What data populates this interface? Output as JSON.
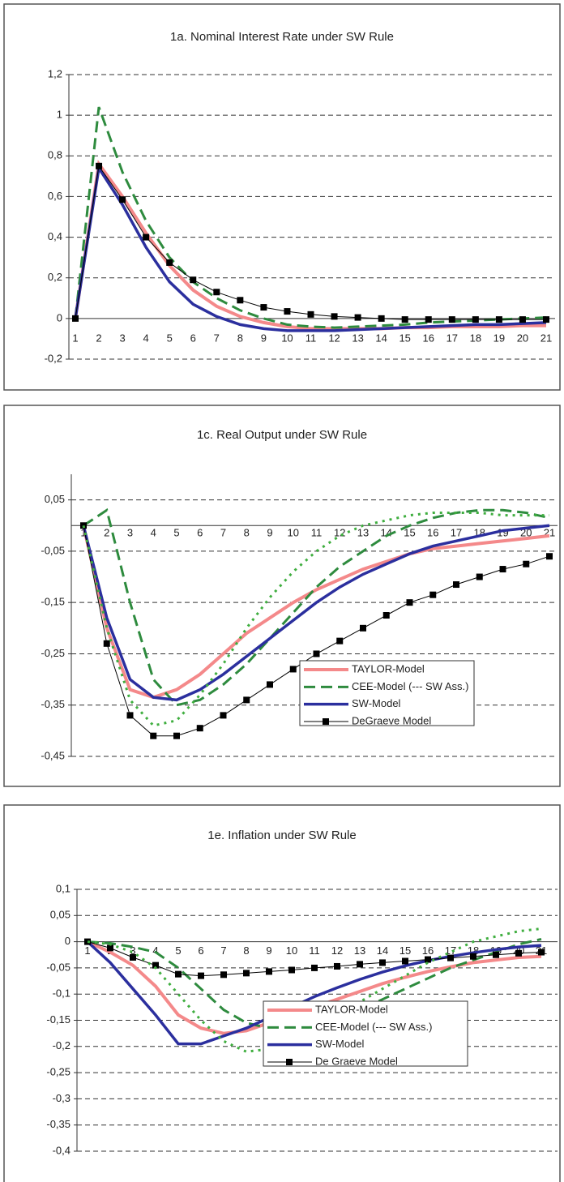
{
  "chart_data": [
    {
      "type": "line",
      "title": "1a. Nominal Interest Rate under SW Rule",
      "categories": [
        "1",
        "2",
        "3",
        "4",
        "5",
        "6",
        "7",
        "8",
        "9",
        "10",
        "11",
        "12",
        "13",
        "14",
        "15",
        "16",
        "17",
        "18",
        "19",
        "20",
        "21"
      ],
      "ylim": [
        -0.2,
        1.2
      ],
      "yticks": [
        {
          "value": 1.2,
          "label": "1,2"
        },
        1,
        {
          "value": 0.8,
          "label": "0,8"
        },
        {
          "value": 0.6,
          "label": "0,6"
        },
        {
          "value": 0.4,
          "label": "0,4"
        },
        {
          "value": 0.2,
          "label": "0,2"
        },
        0,
        {
          "value": -0.2,
          "label": "-0,2"
        }
      ],
      "grid": true,
      "series": [
        {
          "color": "#f4898a",
          "style": "solid",
          "width": 4,
          "values": [
            0,
            0.76,
            0.6,
            0.42,
            0.26,
            0.14,
            0.06,
            0.01,
            -0.02,
            -0.04,
            -0.05,
            -0.05,
            -0.05,
            -0.05,
            -0.045,
            -0.045,
            -0.04,
            -0.04,
            -0.04,
            -0.035,
            -0.035
          ]
        },
        {
          "color": "#2e8b3e",
          "style": "dashed",
          "width": 3,
          "values": [
            0,
            1.04,
            0.72,
            0.48,
            0.3,
            0.18,
            0.1,
            0.04,
            0,
            -0.03,
            -0.04,
            -0.045,
            -0.04,
            -0.035,
            -0.03,
            -0.02,
            -0.015,
            -0.01,
            -0.005,
            0,
            0.005
          ]
        },
        {
          "color": "#2b2f9e",
          "style": "solid",
          "width": 3.5,
          "values": [
            0,
            0.74,
            0.56,
            0.35,
            0.18,
            0.07,
            0.01,
            -0.03,
            -0.05,
            -0.06,
            -0.06,
            -0.06,
            -0.055,
            -0.05,
            -0.045,
            -0.04,
            -0.035,
            -0.03,
            -0.03,
            -0.025,
            -0.02
          ]
        },
        {
          "color": "#000000",
          "style": "solid",
          "width": 1,
          "marker": "square",
          "values": [
            0,
            0.75,
            0.585,
            0.4,
            0.275,
            0.19,
            0.13,
            0.09,
            0.055,
            0.035,
            0.02,
            0.01,
            0.005,
            0,
            -0.005,
            -0.005,
            -0.005,
            -0.005,
            -0.005,
            -0.005,
            -0.005
          ]
        }
      ]
    },
    {
      "type": "line",
      "title": "1c. Real Output under SW Rule",
      "categories": [
        "1",
        "2",
        "3",
        "4",
        "5",
        "6",
        "7",
        "8",
        "9",
        "10",
        "11",
        "12",
        "13",
        "14",
        "15",
        "16",
        "17",
        "18",
        "19",
        "20",
        "21"
      ],
      "ylim": [
        -0.45,
        0.1
      ],
      "yticks": [
        {
          "value": 0.05,
          "label": "0,05"
        },
        {
          "value": -0.05,
          "label": "-0,05"
        },
        {
          "value": -0.15,
          "label": "-0,15"
        },
        {
          "value": -0.25,
          "label": "-0,25"
        },
        {
          "value": -0.35,
          "label": "-0,35"
        },
        {
          "value": -0.45,
          "label": "-0,45"
        }
      ],
      "grid": true,
      "legend": "lower right",
      "series": [
        {
          "name": "TAYLOR-Model",
          "color": "#f4898a",
          "style": "solid",
          "width": 4,
          "values": [
            0,
            -0.2,
            -0.32,
            -0.335,
            -0.32,
            -0.29,
            -0.25,
            -0.21,
            -0.18,
            -0.15,
            -0.125,
            -0.105,
            -0.085,
            -0.07,
            -0.055,
            -0.045,
            -0.04,
            -0.035,
            -0.03,
            -0.025,
            -0.02
          ]
        },
        {
          "name": "CEE-Model (--- SW Ass.)",
          "color": "#2e8b3e",
          "style": "dashed",
          "width": 3,
          "values": [
            0,
            0.03,
            -0.15,
            -0.3,
            -0.35,
            -0.34,
            -0.31,
            -0.27,
            -0.22,
            -0.17,
            -0.12,
            -0.08,
            -0.05,
            -0.02,
            0,
            0.015,
            0.025,
            0.03,
            0.03,
            0.025,
            0.015
          ]
        },
        {
          "name": "SW-Model",
          "color": "#2b2f9e",
          "style": "solid",
          "width": 3.5,
          "values": [
            0,
            -0.18,
            -0.3,
            -0.335,
            -0.34,
            -0.32,
            -0.29,
            -0.255,
            -0.22,
            -0.185,
            -0.15,
            -0.12,
            -0.095,
            -0.075,
            -0.055,
            -0.04,
            -0.03,
            -0.02,
            -0.01,
            -0.005,
            0
          ]
        },
        {
          "name": "DeGraeve Model",
          "color": "#000000",
          "style": "solid",
          "width": 1,
          "marker": "square",
          "values": [
            0,
            -0.23,
            -0.37,
            -0.41,
            -0.41,
            -0.395,
            -0.37,
            -0.34,
            -0.31,
            -0.28,
            -0.25,
            -0.225,
            -0.2,
            -0.175,
            -0.15,
            -0.135,
            -0.115,
            -0.1,
            -0.085,
            -0.075,
            -0.06
          ]
        },
        {
          "color": "#3fae3f",
          "style": "dotted",
          "width": 3,
          "values": [
            0,
            -0.2,
            -0.34,
            -0.39,
            -0.38,
            -0.33,
            -0.27,
            -0.2,
            -0.14,
            -0.09,
            -0.05,
            -0.02,
            0,
            0.01,
            0.02,
            0.025,
            0.025,
            0.025,
            0.02,
            0.02,
            0.02
          ]
        }
      ]
    },
    {
      "type": "line",
      "title": "1e. Inflation under SW Rule",
      "categories": [
        "1",
        "2",
        "3",
        "4",
        "5",
        "6",
        "7",
        "8",
        "9",
        "10",
        "11",
        "12",
        "13",
        "14",
        "15",
        "16",
        "17",
        "18",
        "19",
        "20",
        "21"
      ],
      "ylim": [
        -0.4,
        0.1
      ],
      "yticks": [
        {
          "value": 0.1,
          "label": "0,1"
        },
        {
          "value": 0.05,
          "label": "0,05"
        },
        0,
        {
          "value": -0.05,
          "label": "-0,05"
        },
        {
          "value": -0.1,
          "label": "-0,1"
        },
        {
          "value": -0.15,
          "label": "-0,15"
        },
        {
          "value": -0.2,
          "label": "-0,2"
        },
        {
          "value": -0.25,
          "label": "-0,25"
        },
        {
          "value": -0.3,
          "label": "-0,3"
        },
        {
          "value": -0.35,
          "label": "-0,35"
        },
        {
          "value": -0.4,
          "label": "-0,4"
        }
      ],
      "grid": true,
      "legend": "lower right",
      "series": [
        {
          "name": "TAYLOR-Model",
          "color": "#f4898a",
          "style": "solid",
          "width": 4,
          "values": [
            0,
            -0.02,
            -0.045,
            -0.085,
            -0.14,
            -0.165,
            -0.175,
            -0.17,
            -0.155,
            -0.14,
            -0.125,
            -0.11,
            -0.095,
            -0.08,
            -0.068,
            -0.057,
            -0.048,
            -0.04,
            -0.035,
            -0.03,
            -0.028
          ]
        },
        {
          "name": "CEE-Model (--- SW Ass.)",
          "color": "#2e8b3e",
          "style": "dashed",
          "width": 3,
          "values": [
            0,
            -0.003,
            -0.01,
            -0.02,
            -0.05,
            -0.09,
            -0.13,
            -0.155,
            -0.165,
            -0.17,
            -0.165,
            -0.15,
            -0.13,
            -0.11,
            -0.09,
            -0.07,
            -0.05,
            -0.035,
            -0.02,
            -0.005,
            0.005
          ]
        },
        {
          "name": "SW-Model",
          "color": "#2b2f9e",
          "style": "solid",
          "width": 3.5,
          "values": [
            0,
            -0.04,
            -0.09,
            -0.14,
            -0.195,
            -0.195,
            -0.18,
            -0.165,
            -0.145,
            -0.125,
            -0.105,
            -0.088,
            -0.072,
            -0.058,
            -0.046,
            -0.036,
            -0.028,
            -0.021,
            -0.015,
            -0.01,
            -0.007
          ]
        },
        {
          "name": "De Graeve Model",
          "color": "#000000",
          "style": "solid",
          "width": 1,
          "marker": "square",
          "values": [
            0,
            -0.012,
            -0.03,
            -0.045,
            -0.062,
            -0.065,
            -0.063,
            -0.06,
            -0.057,
            -0.054,
            -0.05,
            -0.047,
            -0.043,
            -0.04,
            -0.037,
            -0.034,
            -0.031,
            -0.028,
            -0.025,
            -0.022,
            -0.02
          ]
        },
        {
          "color": "#3fae3f",
          "style": "dotted",
          "width": 3,
          "values": [
            0,
            -0.005,
            -0.02,
            -0.05,
            -0.1,
            -0.15,
            -0.19,
            -0.21,
            -0.205,
            -0.19,
            -0.165,
            -0.14,
            -0.115,
            -0.09,
            -0.065,
            -0.04,
            -0.02,
            0,
            0.01,
            0.02,
            0.025
          ]
        }
      ]
    }
  ]
}
